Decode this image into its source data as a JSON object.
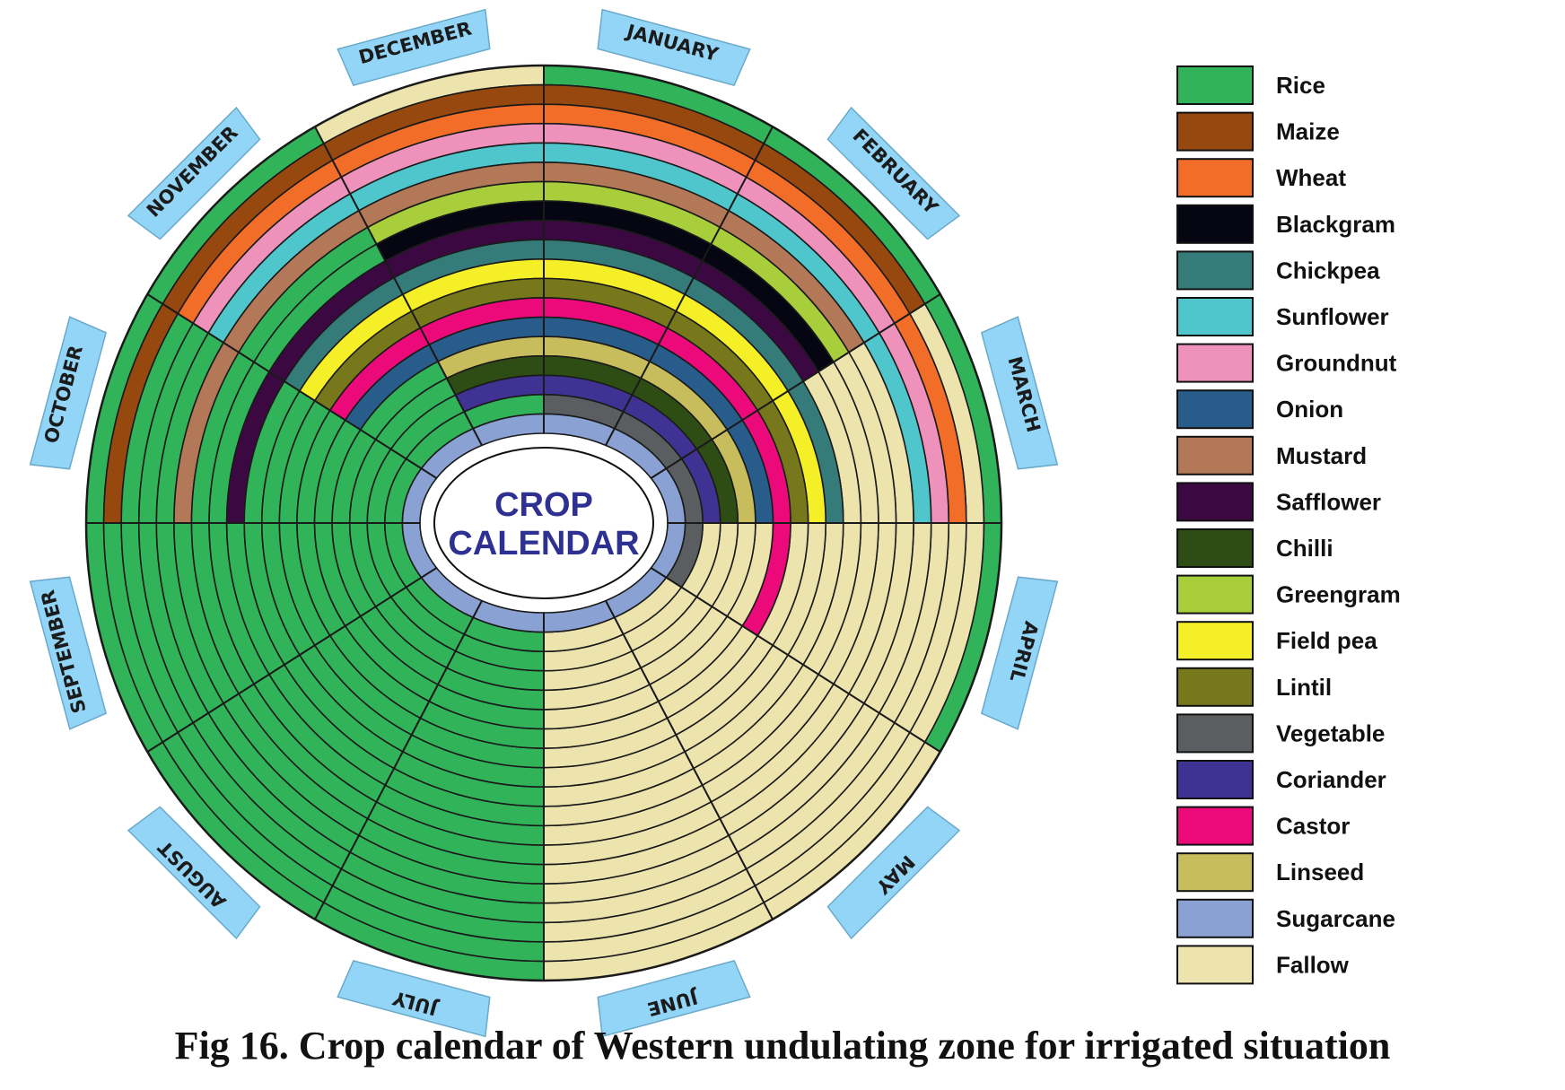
{
  "caption": "Fig 16. Crop calendar of Western undulating zone for irrigated situation",
  "chart_data": {
    "type": "radial-calendar",
    "center_label": [
      "CROP",
      "CALENDAR"
    ],
    "months": [
      "JANUARY",
      "FEBRUARY",
      "MARCH",
      "APRIL",
      "MAY",
      "JUNE",
      "JULY",
      "AUGUST",
      "SEPTEMBER",
      "OCTOBER",
      "NOVEMBER",
      "DECEMBER"
    ],
    "legend": [
      {
        "name": "Rice",
        "color": "#31b35a"
      },
      {
        "name": "Maize",
        "color": "#97480f"
      },
      {
        "name": "Wheat",
        "color": "#f26d27"
      },
      {
        "name": "Blackgram",
        "color": "#060612"
      },
      {
        "name": "Chickpea",
        "color": "#357b79"
      },
      {
        "name": "Sunflower",
        "color": "#4fc6cb"
      },
      {
        "name": "Groundnut",
        "color": "#ee91bb"
      },
      {
        "name": "Onion",
        "color": "#275c8b"
      },
      {
        "name": "Mustard",
        "color": "#b27857"
      },
      {
        "name": "Safflower",
        "color": "#3c0842"
      },
      {
        "name": "Chilli",
        "color": "#2e4d15"
      },
      {
        "name": "Greengram",
        "color": "#a8cf3b"
      },
      {
        "name": "Field pea",
        "color": "#f5ef27"
      },
      {
        "name": "Lintil",
        "color": "#77781b"
      },
      {
        "name": "Vegetable",
        "color": "#5b5e60"
      },
      {
        "name": "Coriander",
        "color": "#3f3292"
      },
      {
        "name": "Castor",
        "color": "#ec0a7a"
      },
      {
        "name": "Linseed",
        "color": "#c8bd5c"
      },
      {
        "name": "Sugarcane",
        "color": "#8aa2d3"
      },
      {
        "name": "Fallow",
        "color": "#ede3ad"
      }
    ],
    "rings": [
      {
        "crop": "Rice",
        "sowing_month": "July",
        "harvest_month": "April"
      },
      {
        "crop": "Maize",
        "sowing_month": "October",
        "harvest_month": "February"
      },
      {
        "crop": "Wheat",
        "sowing_month": "November",
        "harvest_month": "March"
      },
      {
        "crop": "Groundnut",
        "sowing_month": "November",
        "harvest_month": "March"
      },
      {
        "crop": "Sunflower",
        "sowing_month": "November",
        "harvest_month": "March"
      },
      {
        "crop": "Mustard",
        "sowing_month": "October",
        "harvest_month": "February"
      },
      {
        "crop": "Greengram",
        "sowing_month": "December",
        "harvest_month": "February"
      },
      {
        "crop": "Blackgram",
        "sowing_month": "December",
        "harvest_month": "February"
      },
      {
        "crop": "Safflower",
        "sowing_month": "October",
        "harvest_month": "February"
      },
      {
        "crop": "Chickpea",
        "sowing_month": "November",
        "harvest_month": "March"
      },
      {
        "crop": "Field pea",
        "sowing_month": "November",
        "harvest_month": "March"
      },
      {
        "crop": "Lintil",
        "sowing_month": "November",
        "harvest_month": "March"
      },
      {
        "crop": "Castor",
        "sowing_month": "November",
        "harvest_month": "April"
      },
      {
        "crop": "Onion",
        "sowing_month": "November",
        "harvest_month": "March"
      },
      {
        "crop": "Linseed",
        "sowing_month": "December",
        "harvest_month": "March"
      },
      {
        "crop": "Chilli",
        "sowing_month": "December",
        "harvest_month": "March"
      },
      {
        "crop": "Coriander",
        "sowing_month": "December",
        "harvest_month": "March"
      },
      {
        "crop": "Vegetable",
        "sowing_month": "January",
        "harvest_month": "April"
      },
      {
        "crop": "Sugarcane",
        "sowing_month": "January",
        "harvest_month": "December"
      }
    ],
    "ring_fill_sequences": [
      [
        "Rice",
        "Rice",
        "Rice",
        "Rice",
        "Fallow",
        "Fallow",
        "Rice",
        "Rice",
        "Rice",
        "Rice",
        "Rice",
        "Fallow"
      ],
      [
        "Maize",
        "Maize",
        "Fallow",
        "Fallow",
        "Fallow",
        "Fallow",
        "Rice",
        "Rice",
        "Rice",
        "Maize",
        "Maize",
        "Maize"
      ],
      [
        "Wheat",
        "Wheat",
        "Wheat",
        "Fallow",
        "Fallow",
        "Fallow",
        "Rice",
        "Rice",
        "Rice",
        "Rice",
        "Wheat",
        "Wheat"
      ],
      [
        "Groundnut",
        "Groundnut",
        "Groundnut",
        "Fallow",
        "Fallow",
        "Fallow",
        "Rice",
        "Rice",
        "Rice",
        "Rice",
        "Groundnut",
        "Groundnut"
      ],
      [
        "Sunflower",
        "Sunflower",
        "Sunflower",
        "Fallow",
        "Fallow",
        "Fallow",
        "Rice",
        "Rice",
        "Rice",
        "Rice",
        "Sunflower",
        "Sunflower"
      ],
      [
        "Mustard",
        "Mustard",
        "Fallow",
        "Fallow",
        "Fallow",
        "Fallow",
        "Rice",
        "Rice",
        "Rice",
        "Mustard",
        "Mustard",
        "Mustard"
      ],
      [
        "Greengram",
        "Greengram",
        "Fallow",
        "Fallow",
        "Fallow",
        "Fallow",
        "Rice",
        "Rice",
        "Rice",
        "Rice",
        "Rice",
        "Greengram"
      ],
      [
        "Blackgram",
        "Blackgram",
        "Fallow",
        "Fallow",
        "Fallow",
        "Fallow",
        "Rice",
        "Rice",
        "Rice",
        "Rice",
        "Rice",
        "Blackgram"
      ],
      [
        "Safflower",
        "Safflower",
        "Fallow",
        "Fallow",
        "Fallow",
        "Fallow",
        "Rice",
        "Rice",
        "Rice",
        "Safflower",
        "Safflower",
        "Safflower"
      ],
      [
        "Chickpea",
        "Chickpea",
        "Chickpea",
        "Fallow",
        "Fallow",
        "Fallow",
        "Rice",
        "Rice",
        "Rice",
        "Rice",
        "Chickpea",
        "Chickpea"
      ],
      [
        "Field pea",
        "Field pea",
        "Field pea",
        "Fallow",
        "Fallow",
        "Fallow",
        "Rice",
        "Rice",
        "Rice",
        "Rice",
        "Field pea",
        "Field pea"
      ],
      [
        "Lintil",
        "Lintil",
        "Lintil",
        "Fallow",
        "Fallow",
        "Fallow",
        "Rice",
        "Rice",
        "Rice",
        "Rice",
        "Lintil",
        "Lintil"
      ],
      [
        "Castor",
        "Castor",
        "Castor",
        "Castor",
        "Fallow",
        "Fallow",
        "Rice",
        "Rice",
        "Rice",
        "Rice",
        "Castor",
        "Castor"
      ],
      [
        "Onion",
        "Onion",
        "Onion",
        "Fallow",
        "Fallow",
        "Fallow",
        "Rice",
        "Rice",
        "Rice",
        "Rice",
        "Onion",
        "Onion"
      ],
      [
        "Linseed",
        "Linseed",
        "Linseed",
        "Fallow",
        "Fallow",
        "Fallow",
        "Rice",
        "Rice",
        "Rice",
        "Rice",
        "Rice",
        "Linseed"
      ],
      [
        "Chilli",
        "Chilli",
        "Chilli",
        "Fallow",
        "Fallow",
        "Fallow",
        "Rice",
        "Rice",
        "Rice",
        "Rice",
        "Rice",
        "Chilli"
      ],
      [
        "Coriander",
        "Coriander",
        "Coriander",
        "Fallow",
        "Fallow",
        "Fallow",
        "Rice",
        "Rice",
        "Rice",
        "Rice",
        "Rice",
        "Coriander"
      ],
      [
        "Vegetable",
        "Vegetable",
        "Vegetable",
        "Vegetable",
        "Fallow",
        "Fallow",
        "Rice",
        "Rice",
        "Rice",
        "Rice",
        "Rice",
        "Rice"
      ],
      [
        "Sugarcane",
        "Sugarcane",
        "Sugarcane",
        "Sugarcane",
        "Sugarcane",
        "Sugarcane",
        "Sugarcane",
        "Sugarcane",
        "Sugarcane",
        "Sugarcane",
        "Sugarcane",
        "Sugarcane"
      ]
    ]
  }
}
